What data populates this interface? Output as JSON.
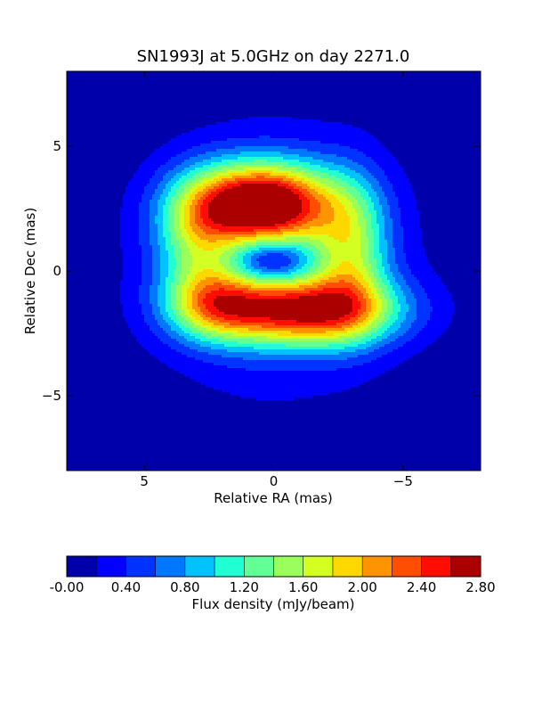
{
  "chart_data": {
    "type": "heatmap",
    "title": "SN1993J at 5.0GHz on day 2271.0",
    "xlabel": "Relative RA (mas)",
    "ylabel": "Relative Dec (mas)",
    "xlim": [
      8,
      -8
    ],
    "ylim": [
      -8,
      8
    ],
    "x_ticks": [
      5,
      0,
      -5
    ],
    "x_tick_labels": [
      "5",
      "0",
      "−5"
    ],
    "y_ticks": [
      5,
      0,
      -5
    ],
    "y_tick_labels": [
      "5",
      "0",
      "−5"
    ],
    "colorbar": {
      "label": "Flux density (mJy/beam)",
      "min": 0.0,
      "max": 2.8,
      "step": 0.2,
      "ticks": [
        0.0,
        0.4,
        0.8,
        1.2,
        1.6,
        2.0,
        2.4,
        2.8
      ],
      "tick_labels": [
        "-0.00",
        "0.40",
        "0.80",
        "1.20",
        "1.60",
        "2.00",
        "2.40",
        "2.80"
      ],
      "colors": [
        "#0000aa",
        "#0000ff",
        "#0033ff",
        "#0077ff",
        "#00c2ff",
        "#21ffd2",
        "#61ff96",
        "#9bff5b",
        "#d4ff23",
        "#ffd800",
        "#ff9400",
        "#ff4e00",
        "#ff0d00",
        "#aa0000"
      ]
    },
    "components": [
      {
        "x": 0.5,
        "y": 2.7,
        "sx": 1.9,
        "sy": 1.1,
        "amp": 2.8
      },
      {
        "x": -1.2,
        "y": -1.6,
        "sx": 2.4,
        "sy": 0.95,
        "amp": 2.2
      },
      {
        "x": 2.3,
        "y": -1.3,
        "sx": 1.3,
        "sy": 1.0,
        "amp": 1.2
      },
      {
        "x": -3.0,
        "y": 0.8,
        "sx": 1.0,
        "sy": 2.0,
        "amp": 1.1
      },
      {
        "x": 3.0,
        "y": 1.3,
        "sx": 1.1,
        "sy": 1.6,
        "amp": 0.9
      },
      {
        "x": 0.0,
        "y": 0.4,
        "sx": 3.4,
        "sy": 3.5,
        "amp": 0.7
      },
      {
        "x": 0.1,
        "y": 0.4,
        "sx": 1.0,
        "sy": 0.6,
        "amp": -0.9
      }
    ]
  }
}
